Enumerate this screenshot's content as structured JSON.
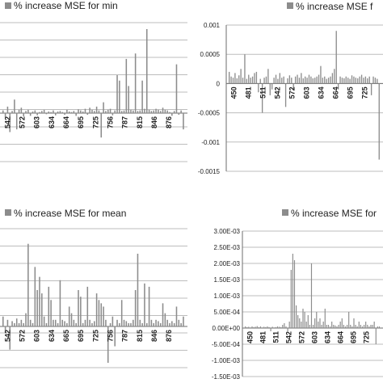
{
  "colors": {
    "bar": "#8c8c8c",
    "grid": "#bdbdbd",
    "axis": "#6e6e6e",
    "legend_swatch": "#8c8c8c"
  },
  "chart_data": [
    {
      "type": "bar",
      "title": "",
      "legend": "% increase MSE for min",
      "legend_placement": "top",
      "grid": true,
      "ylim": null,
      "yticks_visible": [],
      "xticks_visible": [
        "542",
        "572",
        "603",
        "634",
        "664",
        "695",
        "725",
        "756",
        "787",
        "815",
        "846",
        "876"
      ],
      "series": [
        {
          "values": [
            0.05,
            -0.08,
            0.12,
            -0.35,
            0.04,
            0.25,
            -0.3,
            0.06,
            0.1,
            -0.06,
            0.04,
            0.06,
            -0.05,
            0.03,
            0.05,
            -0.04,
            0.02,
            0.04,
            0.06,
            -0.02,
            0.03,
            0.02,
            0.05,
            -0.04,
            0.03,
            0.04,
            0.02,
            -0.03,
            0.06,
            0.03,
            0.02,
            0.04,
            -0.05,
            0.07,
            0.05,
            0.03,
            0.08,
            -0.03,
            0.1,
            0.06,
            0.04,
            0.12,
            0.05,
            -0.45,
            0.2,
            0.04,
            0.06,
            0.08,
            -0.04,
            0.05,
            0.7,
            0.6,
            0.04,
            0.05,
            1.0,
            0.5,
            0.06,
            0.05,
            1.1,
            0.04,
            0.05,
            0.6,
            0.08,
            1.55,
            0.06,
            0.04,
            0.05,
            0.08,
            0.06,
            0.04,
            0.1,
            0.06,
            0.05,
            0.02,
            -0.05,
            0.04,
            0.9,
            -0.03,
            0.05,
            -0.3
          ]
        }
      ]
    },
    {
      "type": "bar",
      "title": "",
      "legend": "% increase MSE f",
      "legend_placement": "top",
      "grid": true,
      "ylim": [
        -0.0015,
        0.001
      ],
      "yticks_visible": [
        "0.001",
        "0.0005",
        "0",
        "-0.0005",
        "-0.001",
        "-0.0015"
      ],
      "xticks_visible": [
        "450",
        "481",
        "511",
        "542",
        "572",
        "603",
        "634",
        "664",
        "695",
        "725"
      ],
      "series": [
        {
          "values": [
            0.0002,
            0.00012,
            0.0001,
            0.00018,
            9e-05,
            0.00014,
            0.00025,
            0.0001,
            0.0005,
            8e-05,
            0.00015,
            0.0001,
            0.00012,
            0.00018,
            0.0002,
            -0.00015,
            8e-05,
            -0.0005,
            0.0001,
            0.00012,
            0.00025,
            -0.0002,
            -0.0001,
            0.0001,
            0.00015,
            8e-05,
            0.00018,
            0.0001,
            0.00012,
            -0.0004,
            9e-05,
            0.00014,
            0.0001,
            -0.0001,
            0.00012,
            0.00015,
            0.0001,
            0.00018,
            9e-05,
            0.00012,
            0.0001,
            0.00015,
            0.00012,
            9e-05,
            0.0001,
            0.00012,
            0.00015,
            0.0003,
            0.0001,
            0.00012,
            8e-05,
            0.0001,
            0.00012,
            0.00018,
            0.00025,
            0.0009,
            -0.0001,
            0.00012,
            0.0001,
            9e-05,
            0.00012,
            0.0001,
            8e-05,
            0.00014,
            0.00012,
            0.0001,
            9e-05,
            0.00012,
            0.00015,
            0.0001,
            0.00012,
            9e-05,
            0.00012,
            -0.0002,
            0.00012,
            0.0001,
            8e-05,
            -0.0013
          ]
        }
      ]
    },
    {
      "type": "bar",
      "title": "",
      "legend": "% increase MSE for mean",
      "legend_placement": "top",
      "grid": true,
      "ylim": null,
      "yticks_visible": [],
      "xticks_visible": [
        "542",
        "572",
        "603",
        "634",
        "665",
        "695",
        "725",
        "756",
        "787",
        "815",
        "846",
        "876"
      ],
      "series": [
        {
          "values": [
            0.15,
            -0.1,
            0.1,
            -0.35,
            0.08,
            0.05,
            0.12,
            0.05,
            0.1,
            0.05,
            0.2,
            1.25,
            0.1,
            0.05,
            0.9,
            0.55,
            0.75,
            0.5,
            0.15,
            0.05,
            0.6,
            0.4,
            0.1,
            0.1,
            0.05,
            0.7,
            0.1,
            0.08,
            0.05,
            0.3,
            0.2,
            0.1,
            0.05,
            0.55,
            0.45,
            0.05,
            0.1,
            0.6,
            0.1,
            0.05,
            0.08,
            0.5,
            0.4,
            0.35,
            0.3,
            0.1,
            -0.55,
            0.05,
            0.15,
            -0.3,
            0.1,
            0.05,
            0.4,
            0.1,
            0.08,
            0.05,
            0.05,
            0.1,
            0.55,
            1.1,
            0.1,
            0.05,
            0.65,
            0.05,
            0.6,
            0.1,
            0.05,
            0.1,
            0.08,
            0.05,
            0.35,
            0.2,
            0.1,
            0.05,
            0.08,
            0.05,
            0.3,
            0.1,
            0.05,
            0.15
          ]
        }
      ]
    },
    {
      "type": "bar",
      "title": "",
      "legend": "% increase MSE for",
      "legend_placement": "top",
      "grid": true,
      "ylim": [
        -0.0015,
        0.003
      ],
      "yticks_visible": [
        "3.00E-03",
        "2.50E-03",
        "2.00E-03",
        "1.50E-03",
        "1.00E-03",
        "5.00E-04",
        "0.00E+00",
        "-5.00E-04",
        "-1.00E-03",
        "-1.50E-03"
      ],
      "xticks_visible": [
        "450",
        "481",
        "511",
        "542",
        "572",
        "603",
        "634",
        "664",
        "695",
        "725"
      ],
      "series": [
        {
          "values": [
            5e-05,
            3e-05,
            4e-05,
            2e-05,
            5e-05,
            3e-05,
            4e-05,
            6e-05,
            3e-05,
            5e-05,
            2e-05,
            4e-05,
            3e-05,
            5e-05,
            3e-05,
            -0.0001,
            4e-05,
            2e-05,
            3e-05,
            5e-05,
            4e-05,
            3e-05,
            0.0001,
            0.00015,
            5e-05,
            -0.0001,
            0.0002,
            0.0018,
            0.0023,
            0.0021,
            0.0007,
            0.0004,
            0.0003,
            0.0002,
            0.0006,
            0.0005,
            0.0002,
            0.0004,
            0.0001,
            0.002,
            0.0001,
            0.0003,
            0.0005,
            0.0002,
            0.0003,
            0.0001,
            0.0002,
            0.0006,
            0.0001,
            0.0001,
            5e-05,
            0.0002,
            0.0001,
            8e-05,
            5e-05,
            0.0001,
            0.0002,
            0.0003,
            0.0001,
            5e-05,
            0.0001,
            0.0005,
            0.0001,
            5e-05,
            0.0003,
            0.0001,
            5e-05,
            0.0002,
            0.0001,
            5e-05,
            0.0001,
            0.0002,
            0.0001,
            5e-05,
            0.0001,
            0.0001,
            0.0002,
            -0.0005,
            5e-05,
            5e-05
          ]
        }
      ]
    }
  ]
}
